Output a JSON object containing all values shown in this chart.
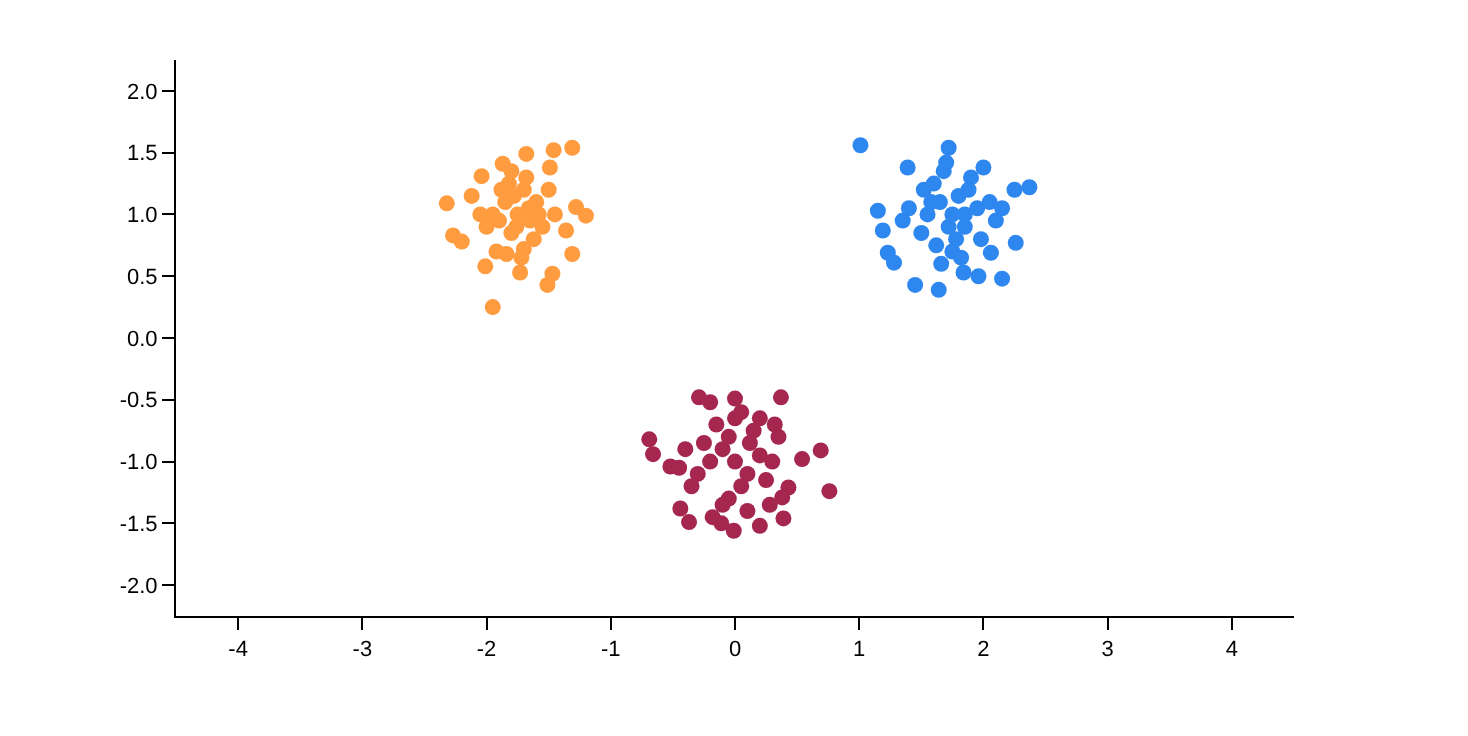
{
  "chart_data": {
    "type": "scatter",
    "marker": "circle",
    "xlim": [
      -4.5,
      4.5
    ],
    "ylim": [
      -2.25,
      2.25
    ],
    "xticks": [
      -4,
      -3,
      -2,
      -1,
      0,
      1,
      2,
      3,
      4
    ],
    "yticks": [
      {
        "value": -2,
        "label": "-2.0"
      },
      {
        "value": -1.5,
        "label": "-1.5"
      },
      {
        "value": -1,
        "label": "-1.0"
      },
      {
        "value": -0.5,
        "label": "-0.5"
      },
      {
        "value": 0,
        "label": "0.0"
      },
      {
        "value": 0.5,
        "label": "0.5"
      },
      {
        "value": 1,
        "label": "1.0"
      },
      {
        "value": 1.5,
        "label": "1.5"
      },
      {
        "value": 2,
        "label": "2.0"
      }
    ],
    "series": [
      {
        "color": "#ff9c40",
        "x": [
          -2.32,
          -1.95,
          -1.51,
          -1.47,
          -1.31,
          -1.2,
          -1.31,
          -1.46,
          -1.68,
          -1.87,
          -2.04,
          -2.27,
          -2.2,
          -2.01,
          -1.73,
          -2.12,
          -1.28,
          -1.36,
          -1.49,
          -1.75,
          -1.85,
          -1.65,
          -1.8,
          -1.7,
          -1.9,
          -1.6,
          -1.95,
          -1.55,
          -1.82,
          -1.68,
          -1.62,
          -1.88,
          -1.78,
          -2.0,
          -1.5,
          -1.72,
          -1.58,
          -1.92,
          -1.84,
          -1.66,
          -1.76,
          -2.05,
          -1.45,
          -1.8,
          -1.7
        ],
        "values": [
          1.09,
          0.25,
          0.43,
          0.52,
          0.68,
          0.99,
          1.54,
          1.52,
          1.49,
          1.41,
          1.31,
          0.83,
          0.78,
          0.58,
          0.53,
          1.15,
          1.06,
          0.87,
          1.38,
          1.0,
          1.1,
          0.95,
          0.85,
          1.2,
          0.95,
          1.1,
          1.0,
          0.9,
          1.25,
          1.3,
          0.8,
          1.2,
          1.15,
          0.9,
          1.2,
          0.65,
          1.0,
          0.7,
          0.68,
          1.05,
          0.9,
          1.0,
          1.0,
          1.35,
          0.72
        ]
      },
      {
        "color": "#2e87ef",
        "x": [
          1.01,
          1.45,
          1.64,
          1.96,
          2.15,
          2.37,
          2.25,
          2.26,
          1.15,
          1.19,
          1.23,
          1.28,
          1.72,
          1.39,
          2.0,
          2.06,
          1.84,
          1.75,
          1.65,
          1.85,
          1.8,
          1.55,
          1.95,
          1.6,
          1.9,
          1.5,
          2.05,
          1.75,
          1.68,
          1.82,
          1.4,
          2.1,
          1.62,
          1.88,
          1.7,
          1.78,
          1.52,
          1.98,
          1.35,
          2.15,
          1.66,
          1.85,
          1.58,
          1.72
        ],
        "values": [
          1.56,
          0.43,
          0.39,
          0.5,
          0.48,
          1.22,
          1.2,
          0.77,
          1.03,
          0.87,
          0.69,
          0.61,
          1.54,
          1.38,
          1.38,
          0.69,
          0.53,
          1.0,
          1.1,
          0.9,
          1.15,
          1.0,
          1.05,
          1.25,
          1.3,
          0.85,
          1.1,
          0.7,
          1.35,
          0.65,
          1.05,
          0.95,
          0.75,
          1.2,
          1.42,
          0.8,
          1.2,
          0.8,
          0.95,
          1.05,
          0.6,
          1.0,
          1.1,
          0.9
        ]
      },
      {
        "color": "#a5264f",
        "x": [
          -0.69,
          -0.66,
          -0.52,
          -0.44,
          -0.37,
          -0.11,
          -0.01,
          0.2,
          0.39,
          0.76,
          0.69,
          0.54,
          0.37,
          -0.29,
          0.0,
          -0.2,
          0.43,
          0.38,
          0.0,
          -0.1,
          0.1,
          -0.2,
          0.2,
          0.05,
          -0.05,
          -0.3,
          0.3,
          0.15,
          -0.15,
          0.0,
          0.25,
          -0.25,
          0.1,
          -0.1,
          0.35,
          -0.35,
          0.05,
          -0.4,
          0.28,
          -0.18,
          0.12,
          0.2,
          -0.05,
          -0.45,
          0.32
        ],
        "values": [
          -0.82,
          -0.94,
          -1.04,
          -1.38,
          -1.49,
          -1.5,
          -1.56,
          -1.52,
          -1.46,
          -1.24,
          -0.91,
          -0.98,
          -0.48,
          -0.48,
          -0.49,
          -0.52,
          -1.21,
          -1.29,
          -1.0,
          -0.9,
          -1.1,
          -1.0,
          -0.95,
          -1.2,
          -1.3,
          -1.1,
          -1.0,
          -0.75,
          -0.7,
          -0.65,
          -1.15,
          -0.85,
          -1.4,
          -1.35,
          -0.8,
          -1.2,
          -0.6,
          -0.9,
          -1.35,
          -1.45,
          -0.85,
          -0.65,
          -0.8,
          -1.05,
          -0.7
        ]
      }
    ]
  }
}
